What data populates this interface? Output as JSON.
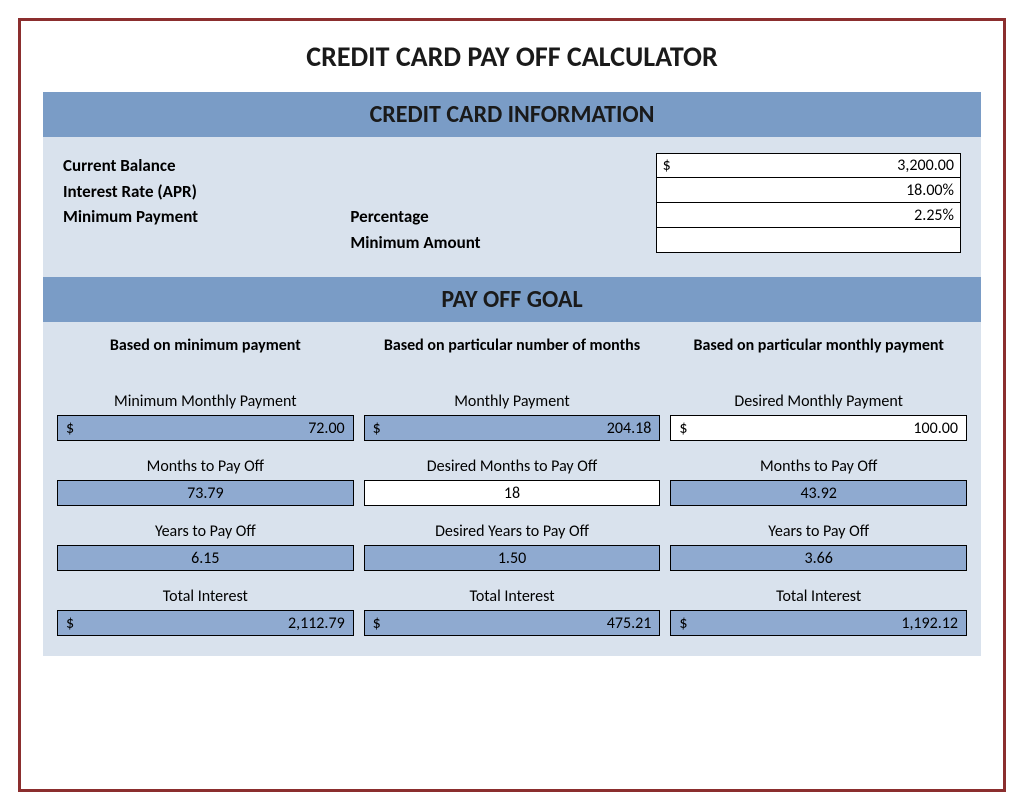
{
  "title": "CREDIT CARD PAY OFF CALCULATOR",
  "section_info_header": "CREDIT CARD INFORMATION",
  "section_goal_header": "PAY OFF GOAL",
  "info": {
    "labels": {
      "current_balance": "Current Balance",
      "interest_rate": "Interest Rate (APR)",
      "minimum_payment": "Minimum Payment",
      "percentage": "Percentage",
      "minimum_amount": "Minimum Amount"
    },
    "values": {
      "current_balance_prefix": "$",
      "current_balance": "3,200.00",
      "interest_rate": "18.00%",
      "percentage": "2.25%",
      "minimum_amount": ""
    }
  },
  "columns": [
    {
      "header": "Based on minimum payment",
      "rows": [
        {
          "label": "Minimum Monthly Payment",
          "prefix": "$",
          "value": "72.00",
          "style": "blue",
          "align": "right"
        },
        {
          "label": "Months to Pay Off",
          "prefix": "",
          "value": "73.79",
          "style": "blue",
          "align": "center"
        },
        {
          "label": "Years to Pay Off",
          "prefix": "",
          "value": "6.15",
          "style": "blue",
          "align": "center"
        },
        {
          "label": "Total Interest",
          "prefix": "$",
          "value": "2,112.79",
          "style": "blue",
          "align": "right"
        }
      ]
    },
    {
      "header": "Based on particular number of months",
      "rows": [
        {
          "label": "Monthly Payment",
          "prefix": "$",
          "value": "204.18",
          "style": "blue",
          "align": "right"
        },
        {
          "label": "Desired Months to Pay Off",
          "prefix": "",
          "value": "18",
          "style": "white",
          "align": "center"
        },
        {
          "label": "Desired Years to Pay Off",
          "prefix": "",
          "value": "1.50",
          "style": "blue",
          "align": "center"
        },
        {
          "label": "Total Interest",
          "prefix": "$",
          "value": "475.21",
          "style": "blue",
          "align": "right"
        }
      ]
    },
    {
      "header": "Based on particular monthly payment",
      "rows": [
        {
          "label": "Desired Monthly Payment",
          "prefix": "$",
          "value": "100.00",
          "style": "white",
          "align": "right"
        },
        {
          "label": "Months to Pay Off",
          "prefix": "",
          "value": "43.92",
          "style": "blue",
          "align": "center"
        },
        {
          "label": "Years to Pay Off",
          "prefix": "",
          "value": "3.66",
          "style": "blue",
          "align": "center"
        },
        {
          "label": "Total Interest",
          "prefix": "$",
          "value": "1,192.12",
          "style": "blue",
          "align": "right"
        }
      ]
    }
  ],
  "colors": {
    "outer_border": "#8b2e2e",
    "header_bg": "#7a9cc6",
    "section_bg": "#d9e2ed",
    "cell_blue": "#8faad0",
    "cell_white": "#ffffff"
  }
}
